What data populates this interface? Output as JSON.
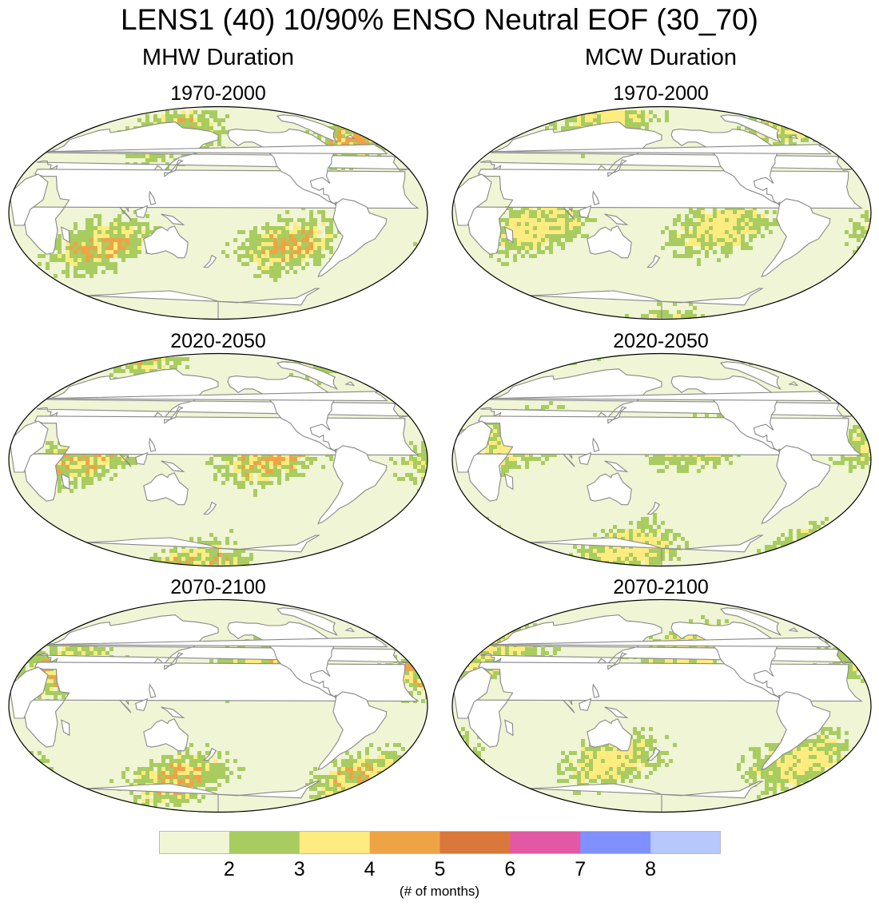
{
  "title": "LENS1 (40) 10/90% ENSO Neutral EOF (30_70)",
  "columns": [
    {
      "title": "MHW Duration",
      "panels": [
        "1970-2000",
        "2020-2050",
        "2070-2100"
      ]
    },
    {
      "title": "MCW Duration",
      "panels": [
        "1970-2000",
        "2020-2050",
        "2070-2100"
      ]
    }
  ],
  "colorbar": {
    "colors": [
      "#f0f5d6",
      "#a8cc60",
      "#ffec80",
      "#eea345",
      "#d9783a",
      "#e358a5",
      "#8090ff",
      "#b6c8ff"
    ],
    "labels": [
      "2",
      "3",
      "4",
      "5",
      "6",
      "7",
      "8"
    ],
    "units": "(# of months)"
  },
  "map_style": {
    "ocean_base": "#f0f5d6",
    "land": "#ffffff",
    "coast": "#888888"
  }
}
